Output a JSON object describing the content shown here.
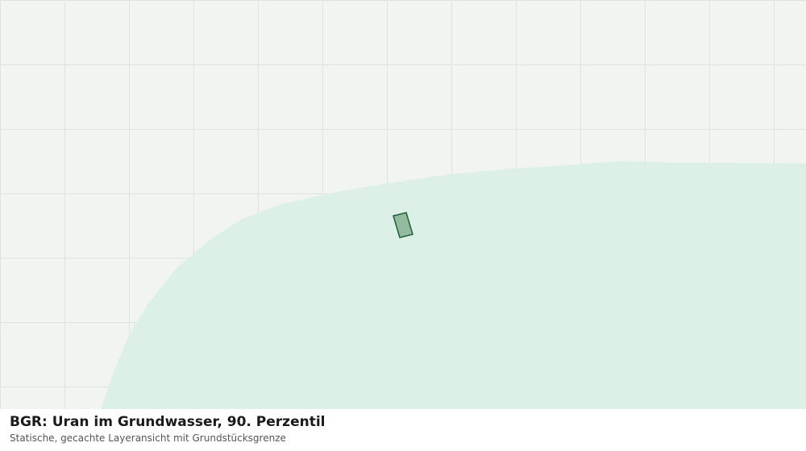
{
  "title": "BGR: Uran im Grundwasser, 90. Perzentil",
  "subtitle": "Statische, gecachte Layeransicht mit Grundstücksgrenze"
}
